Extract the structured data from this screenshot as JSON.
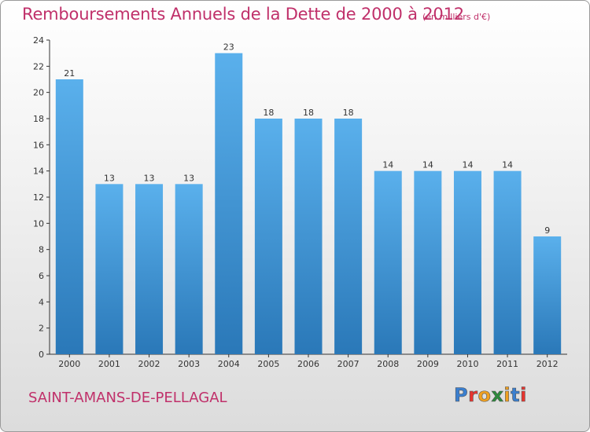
{
  "title": "Remboursements Annuels de la Dette de 2000 à 2012",
  "unit": "(en milliers d'€)",
  "commune": "SAINT-AMANS-DE-PELLAGAL",
  "logo": {
    "letters": [
      "P",
      "r",
      "o",
      "x",
      "i",
      "t",
      "i"
    ],
    "colors": [
      "#3a7fd0",
      "#e8342e",
      "#f0a020",
      "#2d8a3c",
      "#f0a020",
      "#3a7fd0",
      "#e8342e"
    ]
  },
  "colors": {
    "bar_light": "#5ab0ec",
    "bar_dark": "#2a78b8",
    "title": "#c0306a"
  },
  "chart_data": {
    "type": "bar",
    "categories": [
      "2000",
      "2001",
      "2002",
      "2003",
      "2004",
      "2005",
      "2006",
      "2007",
      "2008",
      "2009",
      "2010",
      "2011",
      "2012"
    ],
    "values": [
      21,
      13,
      13,
      13,
      23,
      18,
      18,
      18,
      14,
      14,
      14,
      14,
      9
    ],
    "value_labels": [
      "21",
      "13",
      "13",
      "13",
      "23",
      "18",
      "18",
      "18",
      "14",
      "14",
      "14",
      "14",
      "9"
    ],
    "ylim": [
      0,
      24
    ],
    "yticks": [
      0,
      2,
      4,
      6,
      8,
      10,
      12,
      14,
      16,
      18,
      20,
      22,
      24
    ],
    "grid": false,
    "xlabel": "",
    "ylabel": ""
  }
}
